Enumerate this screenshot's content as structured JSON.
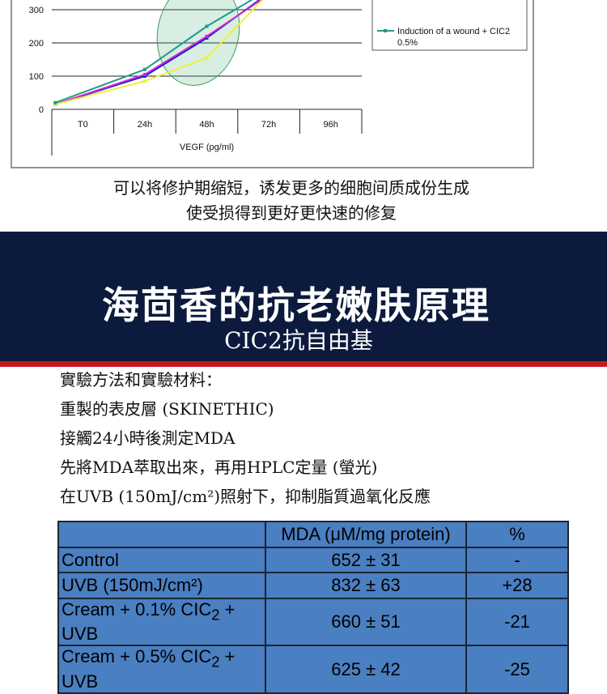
{
  "chart_data": {
    "type": "line",
    "categories": [
      "T0",
      "24h",
      "48h",
      "72h",
      "96h"
    ],
    "xlabel": "VEGF (pg/ml)",
    "yticks": [
      0,
      100,
      200,
      300
    ],
    "series": [
      {
        "name": "",
        "color": "#1a1adb",
        "values": [
          15,
          100,
          215,
          350,
          null
        ]
      },
      {
        "name": "",
        "color": "#d02ad0",
        "values": [
          15,
          105,
          220,
          345,
          null
        ]
      },
      {
        "name": "Induction of a wound",
        "color": "#eef03a",
        "values": [
          15,
          85,
          155,
          350,
          null
        ]
      },
      {
        "name": "Induction of a wound + CIC2 0.5%",
        "color": "#1f9a8c",
        "values": [
          20,
          120,
          250,
          360,
          null
        ]
      }
    ],
    "legend_text": [
      "Induction of a wound",
      "Induction of a wound + CIC2",
      "0.5%"
    ]
  },
  "caption": {
    "line1": "可以将修护期缩短，诱发更多的细胞间质成份生成",
    "line2": "使受损得到更好更快速的修复"
  },
  "banner": {
    "title": "海茴香的抗老嫩肤原理",
    "subtitle": "CIC2抗自由基"
  },
  "methods": [
    "實驗方法和實驗材料：",
    "重製的表皮層 (SKINETHIC)",
    "接觸24小時後測定MDA",
    "先將MDA萃取出來，再用HPLC定量 (螢光)",
    "在UVB (150mJ/cm²)照射下，抑制脂質過氧化反應"
  ],
  "table": {
    "headers": [
      "",
      "MDA (μM/mg protein)",
      "%"
    ],
    "rows": [
      {
        "label": "Control",
        "value": "652 ± 31",
        "pct": "-"
      },
      {
        "label": "UVB (150mJ/cm²)",
        "value": "832 ± 63",
        "pct": "+28"
      },
      {
        "label_pre": "Cream + 0.1% CIC",
        "label_sub": "2",
        "label_post": " + UVB",
        "value": "660 ± 51",
        "pct": "-21"
      },
      {
        "label_pre": "Cream + 0.5% CIC",
        "label_sub": "2",
        "label_post": " + UVB",
        "value": "625 ± 42",
        "pct": "-25"
      }
    ]
  }
}
